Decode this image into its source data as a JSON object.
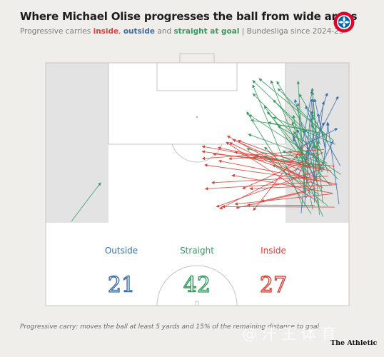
{
  "title": "Where Michael Olise progresses the ball from wide areas",
  "subtitle": {
    "prefix": "Progressive carries ",
    "inside": "inside",
    "sep1": ", ",
    "outside": "outside",
    "sep2": " and ",
    "straight": "straight at goal",
    "suffix": " | Bundesliga since 2024-25"
  },
  "club_badge": {
    "name": "FC Bayern München badge",
    "text": "FC BAYERN MÜNCHEN"
  },
  "colors": {
    "inside": "#d9423a",
    "outside": "#3d6ea8",
    "straight": "#3a9a62",
    "pitch_line": "#c4c4c4",
    "wide_zone": "#e3e3e3"
  },
  "chart_data": {
    "type": "pitch-arrows",
    "categories": [
      "Outside",
      "Straight",
      "Inside"
    ],
    "values": [
      21,
      42,
      27
    ],
    "series": [
      {
        "name": "Outside",
        "count": 21
      },
      {
        "name": "Straight",
        "count": 42
      },
      {
        "name": "Inside",
        "count": 27
      }
    ]
  },
  "footnote": "Progressive carry: moves the ball at least 5 yards and 15% of the remaining distance to goal",
  "brand": "The Athletic",
  "watermark": "@ 汗 王 体 育"
}
